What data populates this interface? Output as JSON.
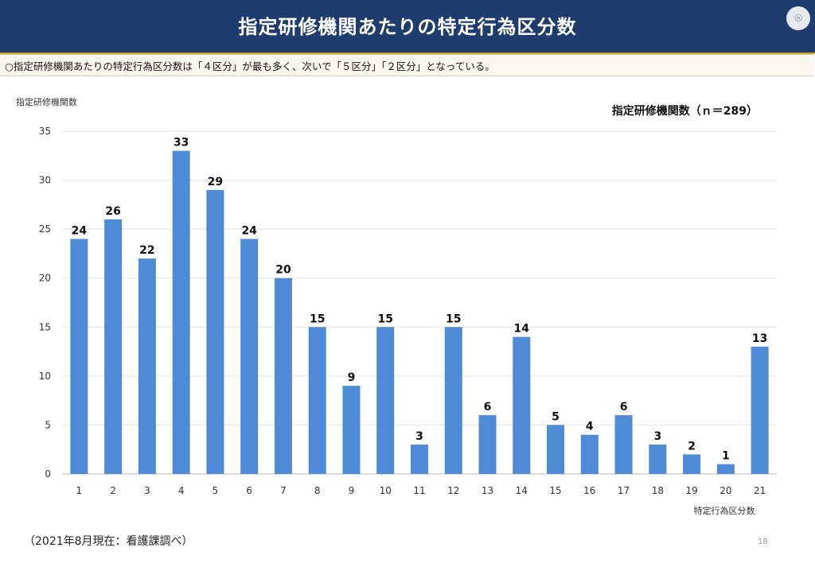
{
  "header": {
    "title": "指定研修機関あたりの特定行為区分数"
  },
  "summary": {
    "text": "○指定研修機関あたりの特定行為区分数は「４区分」が最も多く、次いで「５区分」「２区分」となっている。"
  },
  "footer": {
    "note": "（2021年8月現在：看護課調べ）",
    "page": "18"
  },
  "chart_data": {
    "type": "bar",
    "title": "指定研修機関数（ｎ＝289）",
    "xlabel": "特定行為区分数",
    "ylabel": "指定研修機関数",
    "categories": [
      "1",
      "2",
      "3",
      "4",
      "5",
      "6",
      "7",
      "8",
      "9",
      "10",
      "11",
      "12",
      "13",
      "14",
      "15",
      "16",
      "17",
      "18",
      "19",
      "20",
      "21"
    ],
    "values": [
      24,
      26,
      22,
      33,
      29,
      24,
      20,
      15,
      9,
      15,
      3,
      15,
      6,
      14,
      5,
      4,
      6,
      3,
      2,
      1,
      13
    ],
    "ylim": [
      0,
      35
    ],
    "yticks": [
      "0",
      "5",
      "10",
      "15",
      "20",
      "25",
      "30",
      "35"
    ],
    "grid": true,
    "bar_color": "#4f8ad6",
    "grid_color": "#e3e3e3"
  }
}
